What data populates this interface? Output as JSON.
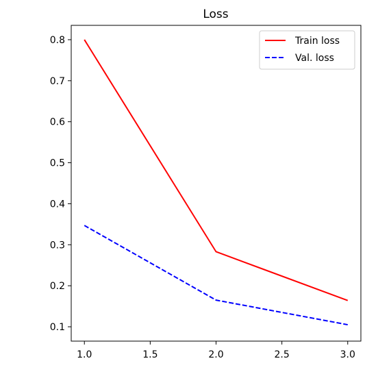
{
  "chart_data": {
    "type": "line",
    "title": "Loss",
    "xlabel": "",
    "ylabel": "",
    "x": [
      1.0,
      2.0,
      3.0
    ],
    "xlim": [
      0.9,
      3.1
    ],
    "ylim": [
      0.065,
      0.835
    ],
    "xticks": [
      1.0,
      1.5,
      2.0,
      2.5,
      3.0
    ],
    "xtick_labels": [
      "1.0",
      "1.5",
      "2.0",
      "2.5",
      "3.0"
    ],
    "yticks": [
      0.1,
      0.2,
      0.3,
      0.4,
      0.5,
      0.6,
      0.7,
      0.8
    ],
    "ytick_labels": [
      "0.1",
      "0.2",
      "0.3",
      "0.4",
      "0.5",
      "0.6",
      "0.7",
      "0.8"
    ],
    "grid": false,
    "legend_position": "top-right",
    "series": [
      {
        "name": "Train loss",
        "values": [
          0.8,
          0.283,
          0.164
        ],
        "color": "#ff0000",
        "style": "solid"
      },
      {
        "name": "Val. loss",
        "values": [
          0.347,
          0.165,
          0.105
        ],
        "color": "#0000ff",
        "style": "dashed"
      }
    ]
  }
}
